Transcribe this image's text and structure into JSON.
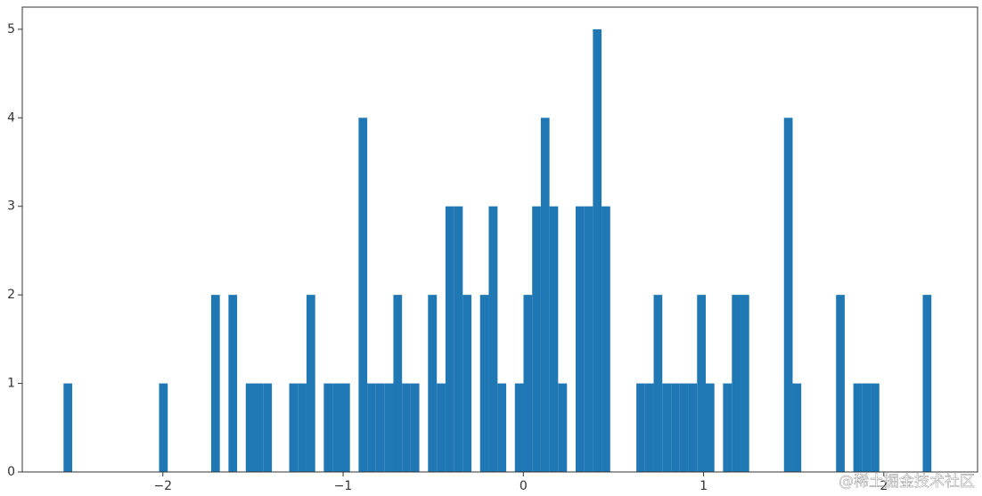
{
  "chart_data": {
    "type": "histogram",
    "color": "#1f77b4",
    "bins": [
      -2.551,
      -2.503,
      -2.455,
      -2.407,
      -2.358,
      -2.31,
      -2.262,
      -2.214,
      -2.166,
      -2.118,
      -2.07,
      -2.021,
      -1.973,
      -1.925,
      -1.877,
      -1.829,
      -1.781,
      -1.732,
      -1.684,
      -1.636,
      -1.588,
      -1.54,
      -1.492,
      -1.444,
      -1.395,
      -1.347,
      -1.299,
      -1.251,
      -1.203,
      -1.155,
      -1.107,
      -1.058,
      -1.01,
      -0.962,
      -0.914,
      -0.866,
      -0.818,
      -0.769,
      -0.721,
      -0.673,
      -0.625,
      -0.577,
      -0.529,
      -0.48,
      -0.432,
      -0.384,
      -0.336,
      -0.288,
      -0.24,
      -0.192,
      -0.143,
      -0.095,
      -0.047,
      0.001,
      0.049,
      0.097,
      0.145,
      0.193,
      0.242,
      0.29,
      0.338,
      0.386,
      0.434,
      0.482,
      0.531,
      0.579,
      0.627,
      0.675,
      0.723,
      0.771,
      0.82,
      0.868,
      0.916,
      0.964,
      1.012,
      1.06,
      1.108,
      1.157,
      1.205,
      1.253,
      1.301,
      1.349,
      1.397,
      1.446,
      1.494,
      1.542,
      1.59,
      1.638,
      1.686,
      1.735,
      1.783,
      1.831,
      1.879,
      1.927,
      1.975,
      2.023,
      2.072,
      2.12,
      2.168,
      2.216,
      2.264
    ],
    "counts": [
      1,
      0,
      0,
      0,
      0,
      0,
      0,
      0,
      0,
      0,
      0,
      1,
      0,
      0,
      0,
      0,
      0,
      2,
      0,
      2,
      0,
      1,
      1,
      1,
      0,
      0,
      1,
      1,
      2,
      0,
      1,
      1,
      1,
      0,
      4,
      1,
      1,
      1,
      2,
      1,
      1,
      0,
      2,
      1,
      3,
      3,
      2,
      0,
      2,
      3,
      1,
      0,
      1,
      2,
      3,
      4,
      3,
      1,
      0,
      3,
      3,
      5,
      3,
      0,
      0,
      0,
      1,
      1,
      2,
      1,
      1,
      1,
      1,
      2,
      1,
      0,
      1,
      2,
      2,
      0,
      0,
      0,
      0,
      4,
      1,
      0,
      0,
      0,
      0,
      2,
      0,
      1,
      1,
      1,
      0,
      0,
      0,
      0,
      0,
      2
    ],
    "xlim": [
      -2.78,
      2.52
    ],
    "ylim": [
      0,
      5.25
    ],
    "xticks": [
      {
        "value": -2,
        "label": "−2"
      },
      {
        "value": -1,
        "label": "−1"
      },
      0,
      1,
      2
    ],
    "yticks": [
      0,
      1,
      2,
      3,
      4,
      5
    ],
    "watermark": "@稀土掘金技术社区"
  }
}
